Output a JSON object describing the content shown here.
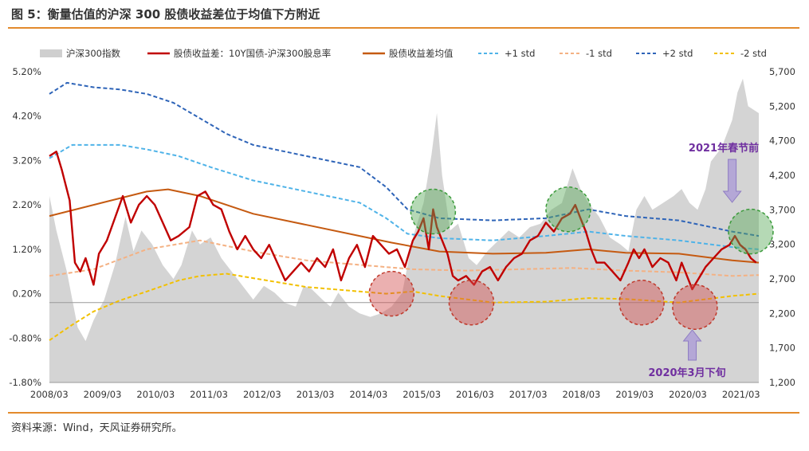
{
  "title": "图 5：衡量估值的沪深 300 股债收益差位于均值下方附近",
  "source": "资料来源：Wind，天风证券研究所。",
  "legend": [
    {
      "label": "沪深300指数",
      "color": "#cfcfcf",
      "style": "area"
    },
    {
      "label": "股债收益差：10Y国债-沪深300股息率",
      "color": "#c00000",
      "style": "solid"
    },
    {
      "label": "股债收益差均值",
      "color": "#c55a11",
      "style": "solid"
    },
    {
      "label": "+1 std",
      "color": "#4fb3e8",
      "style": "dashed"
    },
    {
      "label": "-1 std",
      "color": "#f4b183",
      "style": "dashed"
    },
    {
      "label": "+2 std",
      "color": "#2e64b8",
      "style": "dashed"
    },
    {
      "label": "-2 std",
      "color": "#f2c000",
      "style": "dashed"
    }
  ],
  "annotations": {
    "spring_festival": "2021年春节前",
    "march_2020": "2020年3月下旬"
  },
  "chart_data": {
    "type": "line",
    "x_ticks": [
      "2008/03",
      "2009/03",
      "2010/03",
      "2011/03",
      "2012/03",
      "2013/03",
      "2014/03",
      "2015/03",
      "2016/03",
      "2017/03",
      "2018/03",
      "2019/03",
      "2020/03",
      "2021/03"
    ],
    "x_range": [
      2008.17,
      2021.5
    ],
    "y_left_ticks": [
      "5.20%",
      "4.20%",
      "3.20%",
      "2.20%",
      "1.20%",
      "0.20%",
      "-0.80%",
      "-1.80%"
    ],
    "y_left_range": [
      -1.8,
      5.2
    ],
    "y_right_ticks": [
      "5,700",
      "5,200",
      "4,700",
      "4,200",
      "3,700",
      "3,200",
      "2,700",
      "2,200",
      "1,700",
      "1,200"
    ],
    "y_right_range": [
      1200,
      5700
    ],
    "series": [
      {
        "name": "沪深300指数",
        "axis": "right",
        "type": "area",
        "x": [
          2008.17,
          2008.3,
          2008.5,
          2008.7,
          2008.85,
          2009.0,
          2009.2,
          2009.4,
          2009.6,
          2009.75,
          2009.9,
          2010.1,
          2010.3,
          2010.5,
          2010.65,
          2010.85,
          2011.0,
          2011.2,
          2011.4,
          2011.6,
          2011.8,
          2012.0,
          2012.2,
          2012.4,
          2012.6,
          2012.8,
          2012.95,
          2013.1,
          2013.3,
          2013.45,
          2013.6,
          2013.8,
          2014.0,
          2014.2,
          2014.4,
          2014.6,
          2014.8,
          2015.0,
          2015.2,
          2015.35,
          2015.45,
          2015.55,
          2015.7,
          2015.85,
          2016.05,
          2016.2,
          2016.4,
          2016.6,
          2016.8,
          2017.0,
          2017.2,
          2017.4,
          2017.6,
          2017.8,
          2018.0,
          2018.15,
          2018.3,
          2018.5,
          2018.7,
          2018.9,
          2019.05,
          2019.2,
          2019.35,
          2019.5,
          2019.7,
          2019.9,
          2020.05,
          2020.2,
          2020.35,
          2020.5,
          2020.6,
          2020.8,
          2021.0,
          2021.1,
          2021.2,
          2021.3,
          2021.5
        ],
        "y": [
          3900,
          3400,
          2800,
          2000,
          1800,
          2100,
          2400,
          2900,
          3600,
          3100,
          3400,
          3200,
          2900,
          2700,
          2900,
          3400,
          3200,
          3300,
          3000,
          2800,
          2600,
          2400,
          2600,
          2500,
          2350,
          2300,
          2600,
          2550,
          2400,
          2300,
          2500,
          2300,
          2200,
          2150,
          2200,
          2300,
          2500,
          3300,
          3800,
          4500,
          5100,
          4200,
          3400,
          3500,
          3000,
          2900,
          3100,
          3250,
          3400,
          3300,
          3450,
          3500,
          3700,
          3800,
          4300,
          4000,
          3800,
          3600,
          3300,
          3200,
          3100,
          3700,
          3900,
          3700,
          3800,
          3900,
          4000,
          3800,
          3700,
          4000,
          4400,
          4600,
          5000,
          5400,
          5600,
          5200,
          5100
        ]
      },
      {
        "name": "股债收益差：10Y国债-沪深300股息率",
        "axis": "left",
        "type": "line",
        "x": [
          2008.17,
          2008.3,
          2008.4,
          2008.55,
          2008.65,
          2008.75,
          2008.85,
          2009.0,
          2009.1,
          2009.25,
          2009.4,
          2009.55,
          2009.7,
          2009.85,
          2010.0,
          2010.15,
          2010.3,
          2010.45,
          2010.6,
          2010.8,
          2010.95,
          2011.1,
          2011.25,
          2011.4,
          2011.55,
          2011.7,
          2011.85,
          2012.0,
          2012.15,
          2012.3,
          2012.45,
          2012.6,
          2012.75,
          2012.9,
          2013.05,
          2013.2,
          2013.35,
          2013.5,
          2013.65,
          2013.8,
          2013.95,
          2014.1,
          2014.25,
          2014.4,
          2014.55,
          2014.7,
          2014.85,
          2015.0,
          2015.1,
          2015.2,
          2015.3,
          2015.38,
          2015.45,
          2015.55,
          2015.65,
          2015.75,
          2015.85,
          2016.0,
          2016.15,
          2016.3,
          2016.45,
          2016.6,
          2016.75,
          2016.9,
          2017.05,
          2017.2,
          2017.35,
          2017.5,
          2017.65,
          2017.8,
          2017.95,
          2018.05,
          2018.15,
          2018.25,
          2018.35,
          2018.45,
          2018.6,
          2018.75,
          2018.9,
          2019.05,
          2019.15,
          2019.25,
          2019.35,
          2019.5,
          2019.65,
          2019.8,
          2019.95,
          2020.05,
          2020.15,
          2020.25,
          2020.35,
          2020.5,
          2020.65,
          2020.8,
          2020.95,
          2021.05,
          2021.15,
          2021.25,
          2021.35,
          2021.45
        ],
        "y": [
          3.3,
          3.4,
          3.0,
          2.3,
          0.9,
          0.7,
          1.0,
          0.4,
          1.1,
          1.4,
          1.9,
          2.4,
          1.8,
          2.2,
          2.4,
          2.2,
          1.8,
          1.4,
          1.5,
          1.7,
          2.4,
          2.5,
          2.2,
          2.1,
          1.6,
          1.2,
          1.5,
          1.2,
          1.0,
          1.3,
          0.9,
          0.5,
          0.7,
          0.9,
          0.7,
          1.0,
          0.8,
          1.2,
          0.5,
          1.0,
          1.3,
          0.8,
          1.5,
          1.3,
          1.1,
          1.2,
          0.8,
          1.4,
          1.6,
          1.9,
          1.2,
          2.1,
          1.7,
          1.4,
          1.1,
          0.6,
          0.5,
          0.6,
          0.4,
          0.7,
          0.8,
          0.5,
          0.8,
          1.0,
          1.1,
          1.4,
          1.5,
          1.8,
          1.6,
          1.9,
          2.0,
          2.2,
          1.9,
          1.6,
          1.2,
          0.9,
          0.9,
          0.7,
          0.5,
          0.9,
          1.2,
          1.0,
          1.2,
          0.8,
          1.0,
          0.9,
          0.5,
          0.9,
          0.6,
          0.3,
          0.5,
          0.8,
          1.0,
          1.2,
          1.3,
          1.5,
          1.3,
          1.2,
          1.0,
          0.9
        ]
      },
      {
        "name": "股债收益差均值",
        "axis": "left",
        "type": "line",
        "x": [
          2008.17,
          2009.0,
          2010.0,
          2010.4,
          2011.0,
          2012.0,
          2013.0,
          2014.0,
          2014.6,
          2015.5,
          2016.5,
          2017.5,
          2018.3,
          2019.0,
          2020.0,
          2021.0,
          2021.5
        ],
        "y": [
          1.95,
          2.2,
          2.5,
          2.55,
          2.4,
          2.0,
          1.75,
          1.5,
          1.35,
          1.15,
          1.1,
          1.12,
          1.2,
          1.12,
          1.1,
          0.95,
          0.9
        ]
      },
      {
        "name": "+1 std",
        "axis": "left",
        "type": "line",
        "x": [
          2008.17,
          2008.6,
          2009.5,
          2010.0,
          2010.6,
          2011.2,
          2012.0,
          2013.0,
          2014.0,
          2014.5,
          2014.9,
          2015.5,
          2016.5,
          2017.5,
          2018.3,
          2019.0,
          2020.0,
          2021.0,
          2021.5
        ],
        "y": [
          3.25,
          3.55,
          3.55,
          3.45,
          3.3,
          3.05,
          2.75,
          2.5,
          2.25,
          1.9,
          1.55,
          1.45,
          1.4,
          1.5,
          1.6,
          1.5,
          1.4,
          1.25,
          1.2
        ]
      },
      {
        "name": "-1 std",
        "axis": "left",
        "type": "line",
        "x": [
          2008.17,
          2009.0,
          2010.0,
          2011.0,
          2012.0,
          2013.0,
          2014.0,
          2015.0,
          2016.0,
          2017.0,
          2018.0,
          2019.0,
          2020.0,
          2021.0,
          2021.5
        ],
        "y": [
          0.6,
          0.75,
          1.2,
          1.4,
          1.15,
          0.95,
          0.85,
          0.75,
          0.72,
          0.75,
          0.78,
          0.72,
          0.68,
          0.6,
          0.62
        ]
      },
      {
        "name": "+2 std",
        "axis": "left",
        "type": "line",
        "x": [
          2008.17,
          2008.5,
          2009.0,
          2009.5,
          2010.0,
          2010.5,
          2011.0,
          2011.5,
          2012.0,
          2013.0,
          2014.0,
          2014.5,
          2014.9,
          2015.5,
          2016.5,
          2017.5,
          2018.3,
          2019.0,
          2020.0,
          2021.0,
          2021.5
        ],
        "y": [
          4.7,
          4.95,
          4.85,
          4.8,
          4.7,
          4.5,
          4.15,
          3.8,
          3.55,
          3.3,
          3.05,
          2.6,
          2.1,
          1.9,
          1.85,
          1.9,
          2.1,
          1.95,
          1.85,
          1.6,
          1.5
        ]
      },
      {
        "name": "-2 std",
        "axis": "left",
        "type": "line",
        "x": [
          2008.17,
          2008.6,
          2009.0,
          2009.5,
          2010.0,
          2010.6,
          2011.0,
          2011.5,
          2012.0,
          2013.0,
          2014.0,
          2014.5,
          2015.0,
          2015.5,
          2016.5,
          2017.5,
          2018.3,
          2019.0,
          2020.0,
          2021.0,
          2021.5
        ],
        "y": [
          -0.85,
          -0.5,
          -0.2,
          0.05,
          0.25,
          0.5,
          0.6,
          0.65,
          0.55,
          0.35,
          0.25,
          0.2,
          0.25,
          0.15,
          0.0,
          0.02,
          0.1,
          0.08,
          0.0,
          0.15,
          0.2
        ]
      }
    ]
  }
}
